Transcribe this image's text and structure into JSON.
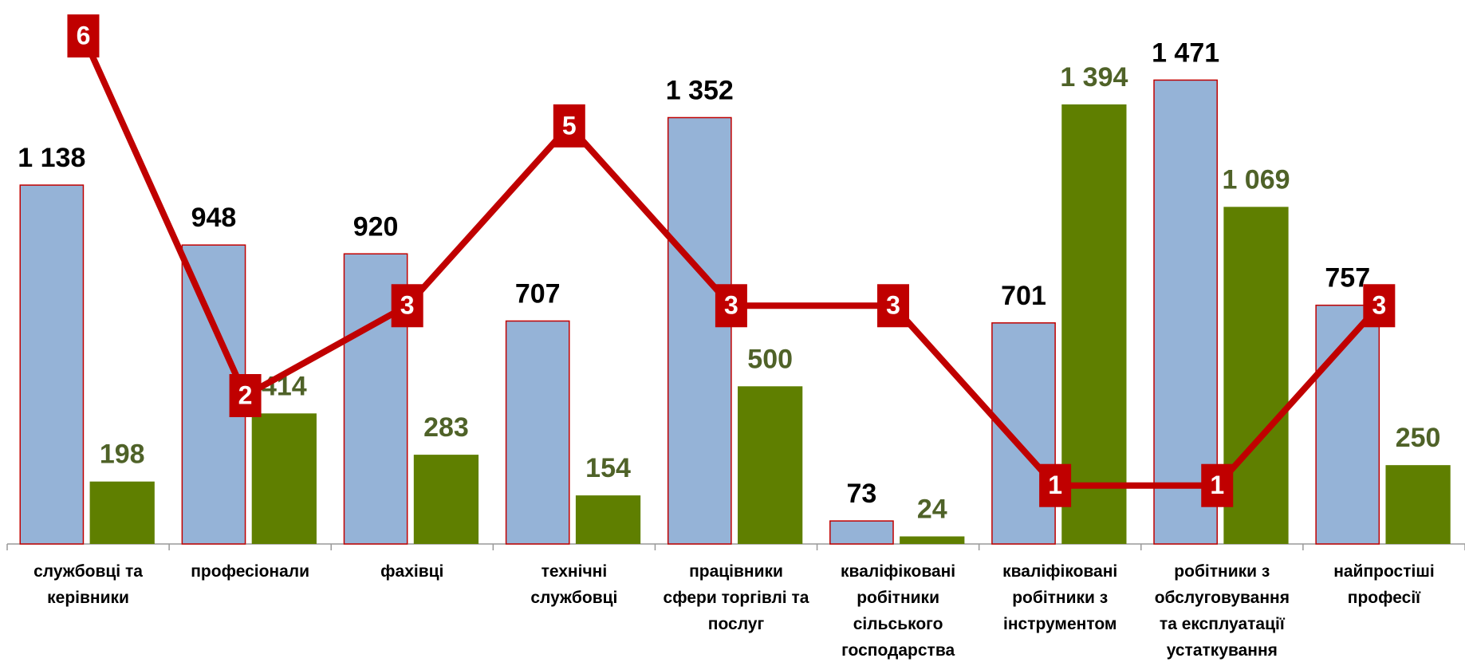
{
  "chart_data": {
    "type": "bar",
    "categories": [
      "службовці та керівники",
      "професіонали",
      "фахівці",
      "технічні службовці",
      "працівники сфери торгівлі та послуг",
      "кваліфіковані робітники сільського господарства",
      "кваліфіковані робітники з інструментом",
      "робітники з обслуговування та експлуатації устаткування",
      "найпростіші професії"
    ],
    "ylim": [
      0,
      1725
    ],
    "y2lim": [
      0.35,
      6.4
    ],
    "series": [
      {
        "type": "bar",
        "color": "#95b3d7",
        "edgecolor": "#c00000",
        "values": [
          1138,
          948,
          920,
          707,
          1352,
          73,
          701,
          1471,
          757
        ],
        "value_labels": [
          "1 138",
          "948",
          "920",
          "707",
          "1 352",
          "73",
          "701",
          "1 471",
          "757"
        ],
        "label_color": "#000000"
      },
      {
        "type": "bar",
        "color": "#5f7f00",
        "values": [
          198,
          414,
          283,
          154,
          500,
          24,
          1394,
          1069,
          250
        ],
        "value_labels": [
          "198",
          "414",
          "283",
          "154",
          "500",
          "24",
          "1 394",
          "1 069",
          "250"
        ],
        "label_color": "#4f6228"
      },
      {
        "type": "line",
        "axis": "y2",
        "color": "#c00000",
        "values": [
          6,
          2,
          3,
          5,
          3,
          3,
          1,
          1,
          3
        ]
      }
    ]
  }
}
